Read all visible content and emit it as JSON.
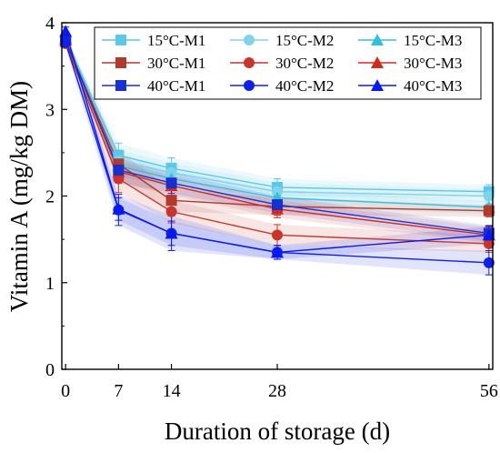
{
  "chart_data": {
    "type": "line",
    "title": "",
    "xlabel": "Duration of storage (d)",
    "ylabel": "Vitamin A (mg/kg DM)",
    "x": [
      0,
      7,
      14,
      28,
      56
    ],
    "xticks": [
      0,
      7,
      14,
      28,
      56
    ],
    "xlim": [
      -0.5,
      56.5
    ],
    "yticks": [
      0,
      1,
      2,
      3,
      4
    ],
    "ylim": [
      0,
      4
    ],
    "grid": false,
    "legend_position": "top-right",
    "error_bars": true,
    "series": [
      {
        "name": "15°C-M1",
        "color": "#5cc8e8",
        "marker": "square",
        "values": [
          3.8,
          2.47,
          2.32,
          2.1,
          2.05
        ],
        "errors": [
          0.05,
          0.14,
          0.12,
          0.1,
          0.08
        ]
      },
      {
        "name": "15°C-M2",
        "color": "#7fd3ea",
        "marker": "circle",
        "values": [
          3.78,
          2.4,
          2.27,
          2.05,
          2.0
        ],
        "errors": [
          0.05,
          0.13,
          0.11,
          0.1,
          0.08
        ]
      },
      {
        "name": "15°C-M3",
        "color": "#33c0e0",
        "marker": "triangle",
        "values": [
          3.82,
          2.35,
          2.2,
          1.98,
          1.87
        ],
        "errors": [
          0.05,
          0.12,
          0.1,
          0.09,
          0.08
        ]
      },
      {
        "name": "30°C-M1",
        "color": "#b03a2e",
        "marker": "square",
        "values": [
          3.78,
          2.37,
          1.95,
          1.88,
          1.83
        ],
        "errors": [
          0.05,
          0.15,
          0.13,
          0.1,
          0.07
        ]
      },
      {
        "name": "30°C-M2",
        "color": "#c8352a",
        "marker": "circle",
        "values": [
          3.76,
          2.2,
          1.82,
          1.55,
          1.45
        ],
        "errors": [
          0.05,
          0.16,
          0.13,
          0.12,
          0.1
        ]
      },
      {
        "name": "30°C-M3",
        "color": "#d42a1e",
        "marker": "triangle",
        "values": [
          3.8,
          2.28,
          2.12,
          1.85,
          1.55
        ],
        "errors": [
          0.05,
          0.13,
          0.11,
          0.1,
          0.09
        ]
      },
      {
        "name": "40°C-M1",
        "color": "#1a2fd0",
        "marker": "square",
        "values": [
          3.8,
          2.3,
          2.15,
          1.9,
          1.57
        ],
        "errors": [
          0.05,
          0.14,
          0.12,
          0.1,
          0.09
        ]
      },
      {
        "name": "40°C-M2",
        "color": "#1020e8",
        "marker": "circle",
        "values": [
          3.77,
          1.84,
          1.57,
          1.35,
          1.23
        ],
        "errors": [
          0.05,
          0.18,
          0.2,
          0.08,
          0.14
        ]
      },
      {
        "name": "40°C-M3",
        "color": "#0a18f0",
        "marker": "triangle",
        "values": [
          3.9,
          1.85,
          1.57,
          1.35,
          1.55
        ],
        "errors": [
          0.05,
          0.13,
          0.14,
          0.08,
          0.1
        ]
      }
    ]
  }
}
